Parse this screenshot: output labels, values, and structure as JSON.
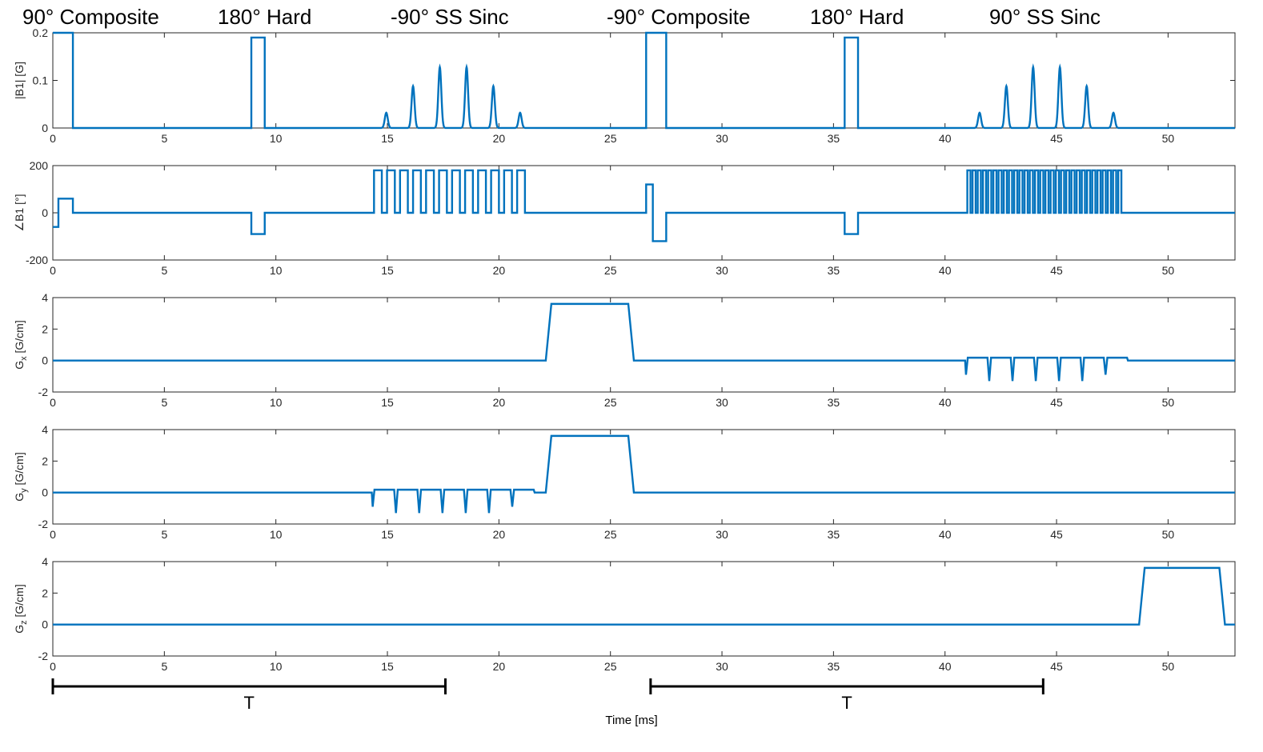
{
  "pulse_labels": [
    "90° Composite",
    "180° Hard",
    "-90° SS Sinc",
    "-90° Composite",
    "180° Hard",
    "90° SS Sinc"
  ],
  "x_axis_label": "Time [ms]",
  "interval_labels": [
    "T",
    "T"
  ],
  "colors": {
    "trace": "#0072BD",
    "axes": "#262626"
  },
  "chart_data": [
    {
      "type": "line",
      "ylabel": "|B1| [G]",
      "xlim": [
        0,
        53
      ],
      "ylim": [
        0,
        0.2
      ],
      "yticks": [
        "0",
        "0.1",
        "0.2"
      ],
      "ytick_values": [
        0,
        0.1,
        0.2
      ],
      "xticks": [
        "0",
        "5",
        "10",
        "15",
        "20",
        "25",
        "30",
        "35",
        "40",
        "45",
        "50"
      ],
      "segments": [
        {
          "kind": "rect",
          "start": 0,
          "end": 0.9,
          "amplitude": 0.2
        },
        {
          "kind": "rect",
          "start": 8.9,
          "end": 9.5,
          "amplitude": 0.19
        },
        {
          "kind": "rect",
          "start": 26.6,
          "end": 27.5,
          "amplitude": 0.2
        },
        {
          "kind": "rect",
          "start": 35.5,
          "end": 36.1,
          "amplitude": 0.19
        }
      ],
      "sinc_lobes": [
        {
          "center": 14.95,
          "peak": 0.032
        },
        {
          "center": 16.15,
          "peak": 0.088
        },
        {
          "center": 17.35,
          "peak": 0.128
        },
        {
          "center": 18.55,
          "peak": 0.128
        },
        {
          "center": 19.75,
          "peak": 0.088
        },
        {
          "center": 20.95,
          "peak": 0.032
        },
        {
          "center": 41.55,
          "peak": 0.032
        },
        {
          "center": 42.75,
          "peak": 0.088
        },
        {
          "center": 43.95,
          "peak": 0.128
        },
        {
          "center": 45.15,
          "peak": 0.128
        },
        {
          "center": 46.35,
          "peak": 0.088
        },
        {
          "center": 47.55,
          "peak": 0.032
        }
      ]
    },
    {
      "type": "line",
      "ylabel": "∠B1 [°]",
      "xlim": [
        0,
        53
      ],
      "ylim": [
        -200,
        200
      ],
      "yticks": [
        "-200",
        "0",
        "200"
      ],
      "ytick_values": [
        -200,
        0,
        200
      ],
      "xticks": [
        "0",
        "5",
        "10",
        "15",
        "20",
        "25",
        "30",
        "35",
        "40",
        "45",
        "50"
      ],
      "points": [
        [
          0,
          -60
        ],
        [
          0.25,
          -60
        ],
        [
          0.25,
          60
        ],
        [
          0.9,
          60
        ],
        [
          0.9,
          0
        ],
        [
          8.9,
          0
        ],
        [
          8.9,
          -90
        ],
        [
          9.5,
          -90
        ],
        [
          9.5,
          0
        ],
        [
          26.6,
          0
        ],
        [
          26.6,
          120
        ],
        [
          26.9,
          120
        ],
        [
          26.9,
          -120
        ],
        [
          27.5,
          -120
        ],
        [
          27.5,
          0
        ],
        [
          35.5,
          0
        ],
        [
          35.5,
          -90
        ],
        [
          36.1,
          -90
        ],
        [
          36.1,
          0
        ],
        [
          53,
          0
        ]
      ],
      "switching_bursts": [
        {
          "start": 14.4,
          "end": 21.4,
          "high": 180,
          "low": 0,
          "count": 12
        },
        {
          "start": 41.0,
          "end": 48.0,
          "high": 180,
          "low": 0,
          "count": 30
        }
      ]
    },
    {
      "type": "line",
      "ylabel": "Gx [G/cm]",
      "ylabel_main": "G",
      "ylabel_sub": "x",
      "ylabel_units": "[G/cm]",
      "xlim": [
        0,
        53
      ],
      "ylim": [
        -2,
        4
      ],
      "yticks": [
        "-2",
        "0",
        "2",
        "4"
      ],
      "ytick_values": [
        -2,
        0,
        2,
        4
      ],
      "xticks": [
        "0",
        "5",
        "10",
        "15",
        "20",
        "25",
        "30",
        "35",
        "40",
        "45",
        "50"
      ],
      "trapezoids": [
        {
          "start": 22.1,
          "ramp": 0.25,
          "flat_end": 25.8,
          "end": 26.05,
          "amplitude": 3.6
        }
      ],
      "blip_train": {
        "start": 40.9,
        "end": 48.2,
        "count": 7,
        "high": 0.18,
        "low": -1.3,
        "first_low": -0.9,
        "last_low": -0.9
      }
    },
    {
      "type": "line",
      "ylabel": "Gy [G/cm]",
      "ylabel_main": "G",
      "ylabel_sub": "y",
      "ylabel_units": "[G/cm]",
      "xlim": [
        0,
        53
      ],
      "ylim": [
        -2,
        4
      ],
      "yticks": [
        "-2",
        "0",
        "2",
        "4"
      ],
      "ytick_values": [
        -2,
        0,
        2,
        4
      ],
      "xticks": [
        "0",
        "5",
        "10",
        "15",
        "20",
        "25",
        "30",
        "35",
        "40",
        "45",
        "50"
      ],
      "trapezoids": [
        {
          "start": 22.1,
          "ramp": 0.25,
          "flat_end": 25.8,
          "end": 26.05,
          "amplitude": 3.6
        }
      ],
      "blip_train": {
        "start": 14.3,
        "end": 21.6,
        "count": 7,
        "high": 0.18,
        "low": -1.3,
        "first_low": -0.9,
        "last_low": -0.9
      }
    },
    {
      "type": "line",
      "ylabel": "Gz [G/cm]",
      "ylabel_main": "G",
      "ylabel_sub": "z",
      "ylabel_units": "[G/cm]",
      "xlim": [
        0,
        53
      ],
      "ylim": [
        -2,
        4
      ],
      "yticks": [
        "-2",
        "0",
        "2",
        "4"
      ],
      "ytick_values": [
        -2,
        0,
        2,
        4
      ],
      "xticks": [
        "0",
        "5",
        "10",
        "15",
        "20",
        "25",
        "30",
        "35",
        "40",
        "45",
        "50"
      ],
      "trapezoids": [
        {
          "start": 48.7,
          "ramp": 0.25,
          "flat_end": 52.3,
          "end": 52.55,
          "amplitude": 3.6
        }
      ]
    }
  ],
  "intervals": [
    {
      "label": "T",
      "start": 0,
      "end": 17.6
    },
    {
      "label": "T",
      "start": 26.8,
      "end": 44.4
    }
  ]
}
